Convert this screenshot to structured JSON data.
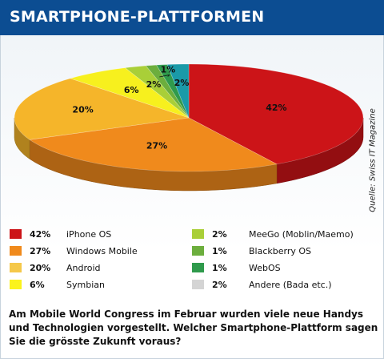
{
  "chart_data": {
    "type": "pie",
    "title": "SMARTPHONE-PLATTFORMEN",
    "source_note": "Quelle: Swiss IT Magazine",
    "question": "Am Mobile World Congress im Februar wurden viele neue Handys und Technologien vorgestellt. Welcher Smartphone-Plattform sagen Sie die grösste Zukunft voraus?",
    "slices": [
      {
        "name": "iPhone OS",
        "value": 42,
        "label": "42%",
        "color": "#cc1418"
      },
      {
        "name": "Windows Mobile",
        "value": 27,
        "label": "27%",
        "color": "#f08a1c"
      },
      {
        "name": "Android",
        "value": 20,
        "label": "20%",
        "color": "#f5b52a"
      },
      {
        "name": "Symbian",
        "value": 6,
        "label": "6%",
        "color": "#f7f01e"
      },
      {
        "name": "MeeGo (Moblin/Maemo)",
        "value": 2,
        "label": "2%",
        "color": "#a9cf38"
      },
      {
        "name": "Blackberry OS",
        "value": 1,
        "label": "1%",
        "color": "#6cae3d"
      },
      {
        "name": "WebOS",
        "value": 1,
        "label": "1%",
        "color": "#2f9a4c"
      },
      {
        "name": "Andere (Bada etc.)",
        "value": 2,
        "label": "2%",
        "color": "#1a9aa8"
      }
    ],
    "legend": [
      {
        "label": "42%",
        "name": "iPhone OS",
        "color": "#cc1418"
      },
      {
        "label": "27%",
        "name": "Windows Mobile",
        "color": "#f08a1c"
      },
      {
        "label": "20%",
        "name": "Android",
        "color": "#f5c84a"
      },
      {
        "label": "6%",
        "name": "Symbian",
        "color": "#fbf31c"
      },
      {
        "label": "2%",
        "name": "MeeGo (Moblin/Maemo)",
        "color": "#a9cf38"
      },
      {
        "label": "1%",
        "name": "Blackberry OS",
        "color": "#6cae3d"
      },
      {
        "label": "1%",
        "name": "WebOS",
        "color": "#2f9a4c"
      },
      {
        "label": "2%",
        "name": "Andere (Bada etc.)",
        "color": "#d4d4d4"
      }
    ],
    "legend_placement": "bottom"
  }
}
